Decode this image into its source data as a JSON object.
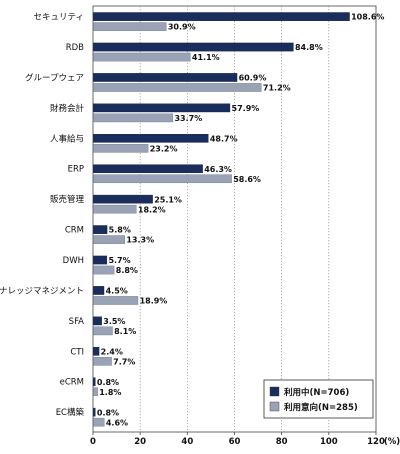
{
  "chart_data": {
    "type": "bar",
    "orientation": "horizontal",
    "title": "",
    "xlabel": "",
    "ylabel": "",
    "unit_label": "(%)",
    "xlim": [
      0,
      120
    ],
    "x_ticks": [
      0,
      20,
      40,
      60,
      80,
      100,
      120
    ],
    "grid": true,
    "legend_position": "bottom-right",
    "categories": [
      "セキュリティ",
      "RDB",
      "グループウェア",
      "財務会計",
      "人事給与",
      "ERP",
      "販売管理",
      "CRM",
      "DWH",
      "ナレッジマネジメント",
      "SFA",
      "CTI",
      "eCRM",
      "EC構築"
    ],
    "series": [
      {
        "name": "利用中(N=706)",
        "color": "#1a2d5c",
        "values": [
          108.6,
          84.8,
          60.9,
          57.9,
          48.7,
          46.3,
          25.1,
          5.8,
          5.7,
          4.5,
          3.5,
          2.4,
          0.8,
          0.8
        ],
        "labels": [
          "108.6%",
          "84.8%",
          "60.9%",
          "57.9%",
          "48.7%",
          "46.3%",
          "25.1%",
          "5.8%",
          "5.7%",
          "4.5%",
          "3.5%",
          "2.4%",
          "0.8%",
          "0.8%"
        ]
      },
      {
        "name": "利用意向(N=285)",
        "color": "#9aa3b5",
        "values": [
          30.9,
          41.1,
          71.2,
          33.7,
          23.2,
          58.6,
          18.2,
          13.3,
          8.8,
          18.9,
          8.1,
          7.7,
          1.8,
          4.6
        ],
        "labels": [
          "30.9%",
          "41.1%",
          "71.2%",
          "33.7%",
          "23.2%",
          "58.6%",
          "18.2%",
          "13.3%",
          "8.8%",
          "18.9%",
          "8.1%",
          "7.7%",
          "1.8%",
          "4.6%"
        ]
      }
    ]
  }
}
